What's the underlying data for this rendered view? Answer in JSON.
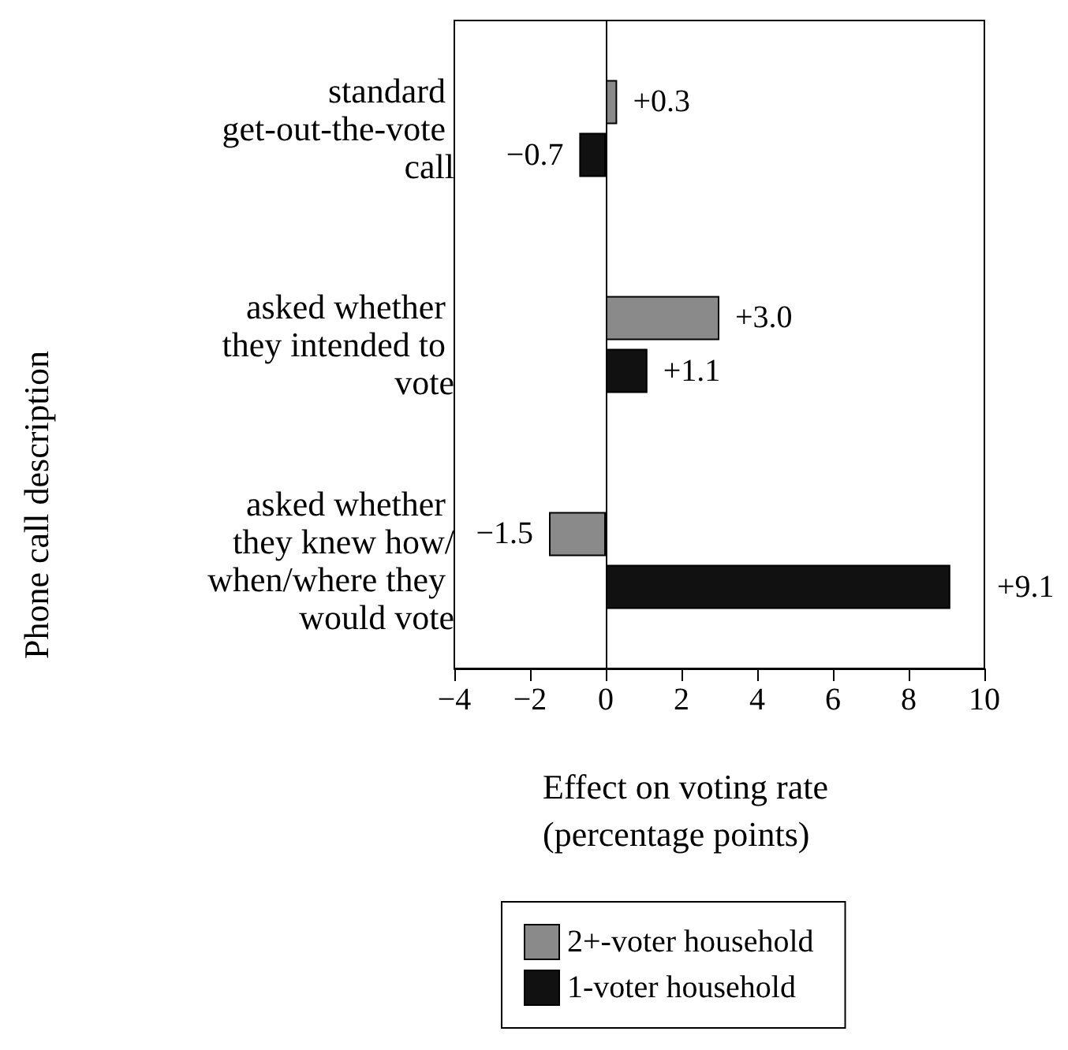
{
  "chart_data": {
    "type": "bar",
    "orientation": "horizontal",
    "xlabel": "Effect on voting rate (percentage points)",
    "ylabel": "Phone call description",
    "categories": [
      "standard get-out-the-vote call",
      "asked whether they intended to vote",
      "asked whether they knew how/when/where they would vote"
    ],
    "series": [
      {
        "name": "2+-voter household",
        "color": "#8a8a8a",
        "values": [
          0.3,
          3.0,
          -1.5
        ],
        "value_labels": [
          "+0.3",
          "+3.0",
          "−1.5"
        ]
      },
      {
        "name": "1-voter household",
        "color": "#111111",
        "values": [
          -0.7,
          1.1,
          9.1
        ],
        "value_labels": [
          "−0.7",
          "+1.1",
          "+9.1"
        ]
      }
    ],
    "xlim": [
      -4,
      10
    ],
    "xticks": [
      {
        "value": -4,
        "label": "−4"
      },
      {
        "value": -2,
        "label": "−2"
      },
      0,
      2,
      4,
      6,
      8,
      10
    ],
    "legend": "bottom"
  }
}
